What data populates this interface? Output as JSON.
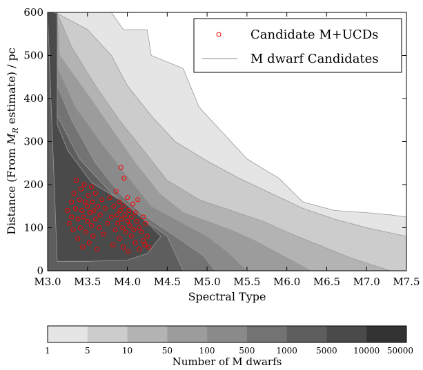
{
  "chart_data": {
    "type": "scatter",
    "title": "",
    "xlabel": "Spectral Type",
    "ylabel": "Distance (From M_R estimate) / pc",
    "ylabel_parts": {
      "before": "Distance (From ",
      "symbol": "M",
      "subscript": "R",
      "after": " estimate) / pc"
    },
    "x_tick_labels": [
      "M3.0",
      "M3.5",
      "M4.0",
      "M4.5",
      "M5.0",
      "M5.5",
      "M6.0",
      "M6.5",
      "M7.0",
      "M7.5"
    ],
    "x_tick_values": [
      3.0,
      3.5,
      4.0,
      4.5,
      5.0,
      5.5,
      6.0,
      6.5,
      7.0,
      7.5
    ],
    "xlim": [
      3.0,
      7.5
    ],
    "y_ticks": [
      0,
      100,
      200,
      300,
      400,
      500,
      600
    ],
    "ylim": [
      0,
      600
    ],
    "grid": false,
    "legend_position": "top-right",
    "legend": [
      {
        "label": "Candidate M+UCDs",
        "marker": "open-circle",
        "color": "#ff0000"
      },
      {
        "label": "M dwarf Candidates",
        "marker": "line",
        "color": "#888888"
      }
    ],
    "contour_levels": [
      "1",
      "5",
      "10",
      "50",
      "100",
      "500",
      "1000",
      "5000",
      "10000",
      "50000"
    ],
    "contour_colors": [
      "#e5e5e5",
      "#cccccc",
      "#b3b3b3",
      "#9c9c9c",
      "#8a8a8a",
      "#737373",
      "#5e5e5e",
      "#4a4a4a",
      "#333333"
    ],
    "colorbar_label": "Number of M dwarfs",
    "contour_boundaries": [
      [
        [
          3.0,
          600
        ],
        [
          3.8,
          600
        ],
        [
          3.95,
          560
        ],
        [
          4.25,
          560
        ],
        [
          4.3,
          500
        ],
        [
          4.7,
          470
        ],
        [
          4.9,
          380
        ],
        [
          5.2,
          320
        ],
        [
          5.5,
          260
        ],
        [
          5.9,
          215
        ],
        [
          6.2,
          160
        ],
        [
          6.6,
          140
        ],
        [
          7.0,
          135
        ],
        [
          7.3,
          130
        ],
        [
          7.5,
          125
        ]
      ],
      [
        [
          3.0,
          600
        ],
        [
          3.05,
          600
        ],
        [
          3.12,
          598
        ],
        [
          3.5,
          560
        ],
        [
          3.8,
          500
        ],
        [
          4.0,
          430
        ],
        [
          4.3,
          360
        ],
        [
          4.6,
          300
        ],
        [
          5.0,
          255
        ],
        [
          5.4,
          215
        ],
        [
          5.8,
          180
        ],
        [
          6.2,
          145
        ],
        [
          6.6,
          120
        ],
        [
          7.0,
          100
        ],
        [
          7.5,
          80
        ]
      ],
      [
        [
          3.0,
          600
        ],
        [
          3.05,
          600
        ],
        [
          3.12,
          598
        ],
        [
          3.3,
          520
        ],
        [
          3.6,
          430
        ],
        [
          3.9,
          350
        ],
        [
          4.2,
          280
        ],
        [
          4.5,
          210
        ],
        [
          4.9,
          165
        ],
        [
          5.3,
          140
        ],
        [
          5.7,
          115
        ],
        [
          6.0,
          90
        ],
        [
          6.4,
          60
        ],
        [
          6.8,
          30
        ],
        [
          7.3,
          0
        ]
      ],
      [
        [
          3.0,
          600
        ],
        [
          3.05,
          600
        ],
        [
          3.12,
          598
        ],
        [
          3.15,
          500
        ],
        [
          3.5,
          410
        ],
        [
          3.8,
          330
        ],
        [
          4.1,
          250
        ],
        [
          4.4,
          180
        ],
        [
          4.7,
          135
        ],
        [
          5.0,
          115
        ],
        [
          5.3,
          95
        ],
        [
          5.6,
          70
        ],
        [
          5.9,
          40
        ],
        [
          6.3,
          0
        ]
      ],
      [
        [
          3.0,
          600
        ],
        [
          3.05,
          600
        ],
        [
          3.12,
          598
        ],
        [
          3.13,
          470
        ],
        [
          3.35,
          380
        ],
        [
          3.7,
          290
        ],
        [
          4.0,
          220
        ],
        [
          4.3,
          150
        ],
        [
          4.7,
          110
        ],
        [
          5.0,
          80
        ],
        [
          5.25,
          45
        ],
        [
          5.5,
          0
        ]
      ],
      [
        [
          3.0,
          600
        ],
        [
          3.05,
          600
        ],
        [
          3.12,
          598
        ],
        [
          3.12,
          430
        ],
        [
          3.3,
          350
        ],
        [
          3.6,
          250
        ],
        [
          3.9,
          180
        ],
        [
          4.2,
          130
        ],
        [
          4.6,
          80
        ],
        [
          4.95,
          35
        ],
        [
          5.1,
          0
        ]
      ],
      [
        [
          3.0,
          600
        ],
        [
          3.05,
          600
        ],
        [
          3.12,
          598
        ],
        [
          3.12,
          360
        ],
        [
          3.4,
          260
        ],
        [
          3.8,
          180
        ],
        [
          4.2,
          120
        ],
        [
          4.5,
          80
        ],
        [
          4.6,
          40
        ],
        [
          4.7,
          0
        ]
      ],
      [
        [
          3.0,
          600
        ],
        [
          3.05,
          600
        ],
        [
          3.12,
          598
        ],
        [
          3.12,
          340
        ],
        [
          3.25,
          280
        ],
        [
          3.55,
          205
        ],
        [
          3.95,
          160
        ],
        [
          4.2,
          120
        ],
        [
          4.42,
          80
        ],
        [
          4.25,
          40
        ],
        [
          4.0,
          25
        ],
        [
          3.5,
          22
        ],
        [
          3.12,
          22
        ]
      ]
    ],
    "series": [
      {
        "name": "Candidate M+UCDs",
        "points": [
          [
            3.25,
            140
          ],
          [
            3.27,
            110
          ],
          [
            3.3,
            160
          ],
          [
            3.3,
            125
          ],
          [
            3.32,
            95
          ],
          [
            3.33,
            180
          ],
          [
            3.35,
            145
          ],
          [
            3.36,
            210
          ],
          [
            3.38,
            120
          ],
          [
            3.38,
            75
          ],
          [
            3.4,
            165
          ],
          [
            3.41,
            100
          ],
          [
            3.42,
            190
          ],
          [
            3.43,
            140
          ],
          [
            3.44,
            55
          ],
          [
            3.45,
            125
          ],
          [
            3.46,
            200
          ],
          [
            3.47,
            160
          ],
          [
            3.48,
            90
          ],
          [
            3.5,
            150
          ],
          [
            3.5,
            115
          ],
          [
            3.51,
            175
          ],
          [
            3.52,
            65
          ],
          [
            3.53,
            135
          ],
          [
            3.55,
            195
          ],
          [
            3.55,
            105
          ],
          [
            3.56,
            160
          ],
          [
            3.57,
            80
          ],
          [
            3.58,
            140
          ],
          [
            3.6,
            120
          ],
          [
            3.6,
            180
          ],
          [
            3.62,
            50
          ],
          [
            3.63,
            150
          ],
          [
            3.65,
            100
          ],
          [
            3.66,
            130
          ],
          [
            3.68,
            165
          ],
          [
            3.7,
            85
          ],
          [
            3.72,
            145
          ],
          [
            3.75,
            110
          ],
          [
            3.78,
            170
          ],
          [
            3.8,
            125
          ],
          [
            3.82,
            60
          ],
          [
            3.83,
            150
          ],
          [
            3.85,
            95
          ],
          [
            3.86,
            185
          ],
          [
            3.87,
            130
          ],
          [
            3.88,
            110
          ],
          [
            3.9,
            160
          ],
          [
            3.9,
            75
          ],
          [
            3.91,
            140
          ],
          [
            3.92,
            240
          ],
          [
            3.93,
            120
          ],
          [
            3.94,
            100
          ],
          [
            3.95,
            55
          ],
          [
            3.95,
            150
          ],
          [
            3.96,
            215
          ],
          [
            3.97,
            130
          ],
          [
            3.98,
            90
          ],
          [
            4.0,
            115
          ],
          [
            4.0,
            170
          ],
          [
            4.01,
            45
          ],
          [
            4.02,
            140
          ],
          [
            4.03,
            105
          ],
          [
            4.05,
            125
          ],
          [
            4.05,
            80
          ],
          [
            4.07,
            155
          ],
          [
            4.08,
            95
          ],
          [
            4.1,
            135
          ],
          [
            4.1,
            65
          ],
          [
            4.12,
            115
          ],
          [
            4.13,
            165
          ],
          [
            4.15,
            100
          ],
          [
            4.15,
            50
          ],
          [
            4.18,
            90
          ],
          [
            4.2,
            70
          ],
          [
            4.2,
            125
          ],
          [
            4.22,
            60
          ],
          [
            4.23,
            110
          ],
          [
            4.25,
            80
          ],
          [
            4.27,
            55
          ]
        ]
      }
    ]
  }
}
